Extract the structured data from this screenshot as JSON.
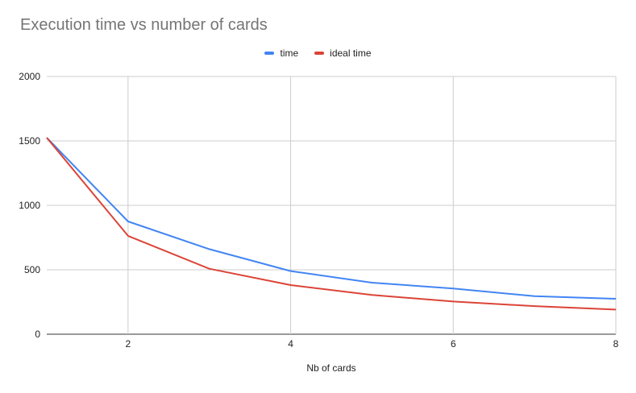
{
  "chart_data": {
    "type": "line",
    "title": "Execution time vs number of cards",
    "xlabel": "Nb of cards",
    "ylabel": "",
    "x": [
      1,
      2,
      3,
      4,
      5,
      6,
      7,
      8
    ],
    "xlim": [
      1,
      8
    ],
    "ylim": [
      0,
      2000
    ],
    "x_ticks": [
      2,
      4,
      6,
      8
    ],
    "y_ticks": [
      0,
      500,
      1000,
      1500,
      2000
    ],
    "grid": true,
    "legend_position": "top",
    "series": [
      {
        "name": "time",
        "color": "#4285f4",
        "values": [
          1525,
          875,
          660,
          490,
          400,
          355,
          295,
          275
        ]
      },
      {
        "name": "ideal time",
        "color": "#db4437",
        "values": [
          1525,
          763,
          508,
          381,
          305,
          254,
          218,
          191
        ]
      }
    ]
  }
}
